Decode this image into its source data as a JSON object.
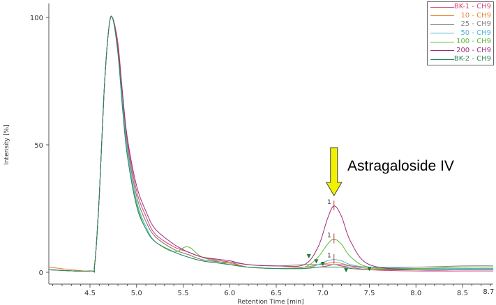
{
  "chart_data": {
    "type": "line",
    "xlabel": "Retention Time [min]",
    "ylabel": "Intensity [%]",
    "xlim": [
      4.06,
      8.83
    ],
    "ylim": [
      -5,
      105
    ],
    "xticks": [
      "4.5",
      "5.0",
      "5.5",
      "6.0",
      "6.5",
      "7.0",
      "7.5",
      "8.0",
      "8.5",
      "8.7"
    ],
    "yticks": [
      "0",
      "50",
      "100"
    ],
    "grid": false,
    "legend_position": "top-right",
    "x": [
      4.06,
      4.5,
      4.55,
      4.6,
      4.65,
      4.7,
      4.74,
      4.8,
      4.85,
      4.9,
      5.0,
      5.1,
      5.2,
      5.4,
      5.55,
      5.7,
      5.9,
      6.0,
      6.2,
      6.5,
      6.8,
      6.95,
      7.05,
      7.12,
      7.2,
      7.3,
      7.5,
      8.0,
      8.5,
      8.83
    ],
    "series": [
      {
        "name": "BK-1 - CH9",
        "color": "#d9407a",
        "values": [
          1,
          0.5,
          3,
          30,
          70,
          95,
          100,
          90,
          70,
          52,
          32,
          22,
          15,
          10,
          8,
          6,
          4.5,
          4,
          2,
          1.5,
          1.5,
          2,
          2.5,
          3,
          2.5,
          2,
          1,
          0.5,
          0.5,
          0.5
        ]
      },
      {
        "name": "10 - CH9",
        "color": "#e8842a",
        "values": [
          2,
          0.5,
          3,
          30,
          70,
          95,
          100,
          88,
          68,
          50,
          30,
          20,
          14,
          9,
          7,
          5,
          4,
          3.5,
          2,
          1.5,
          2,
          3,
          3.5,
          4,
          3.5,
          2.5,
          1.5,
          1,
          1,
          1
        ]
      },
      {
        "name": "25 - CH9",
        "color": "#7f7f7f",
        "values": [
          1,
          0.5,
          3,
          30,
          70,
          95,
          100,
          88,
          68,
          50,
          30,
          20,
          14,
          9,
          7,
          5,
          4,
          4,
          3,
          2.5,
          3,
          3,
          3,
          3,
          3,
          2.5,
          2,
          2,
          2.5,
          2.5
        ]
      },
      {
        "name": "50 - CH9",
        "color": "#4bb8d8",
        "values": [
          1,
          0.5,
          3,
          30,
          70,
          95,
          100,
          87,
          66,
          48,
          28,
          18,
          12,
          8,
          6,
          4.5,
          3.5,
          3,
          2,
          1.5,
          1.5,
          3,
          4.5,
          5,
          4.5,
          3,
          2,
          1.5,
          1.5,
          1.5
        ]
      },
      {
        "name": "100 - CH9",
        "color": "#5cb83a",
        "values": [
          1,
          0.5,
          3,
          30,
          70,
          95,
          100,
          86,
          64,
          46,
          27,
          17,
          12,
          8,
          10,
          6,
          4,
          3,
          2,
          1.5,
          2,
          6,
          11,
          13,
          11,
          6,
          2,
          1.5,
          2,
          2
        ]
      },
      {
        "name": "200 - CH9",
        "color": "#9b2d7f",
        "values": [
          1,
          0.5,
          3,
          30,
          70,
          95,
          100,
          88,
          70,
          53,
          34,
          24,
          17,
          11,
          8,
          6,
          5,
          4.5,
          3,
          2.5,
          3,
          10,
          21,
          26,
          22,
          12,
          3,
          1,
          1,
          1
        ]
      },
      {
        "name": "BK-2 - CH9",
        "color": "#2a8a5a",
        "values": [
          1,
          0.5,
          3,
          30,
          70,
          95,
          100,
          86,
          64,
          46,
          26,
          17,
          12,
          8,
          6,
          4.5,
          3.5,
          3,
          2,
          1.5,
          1.5,
          2,
          2,
          2,
          2,
          1.5,
          1,
          1,
          1,
          1
        ]
      }
    ],
    "annotations": [
      {
        "text": "Astragaloside IV",
        "x": 7.12
      },
      {
        "text": "1",
        "x": 7.12,
        "y": 26
      },
      {
        "text": "1",
        "x": 7.12,
        "y": 13
      },
      {
        "text": "1",
        "x": 7.12,
        "y": 5
      }
    ],
    "arrow_color": "#f2f200"
  }
}
